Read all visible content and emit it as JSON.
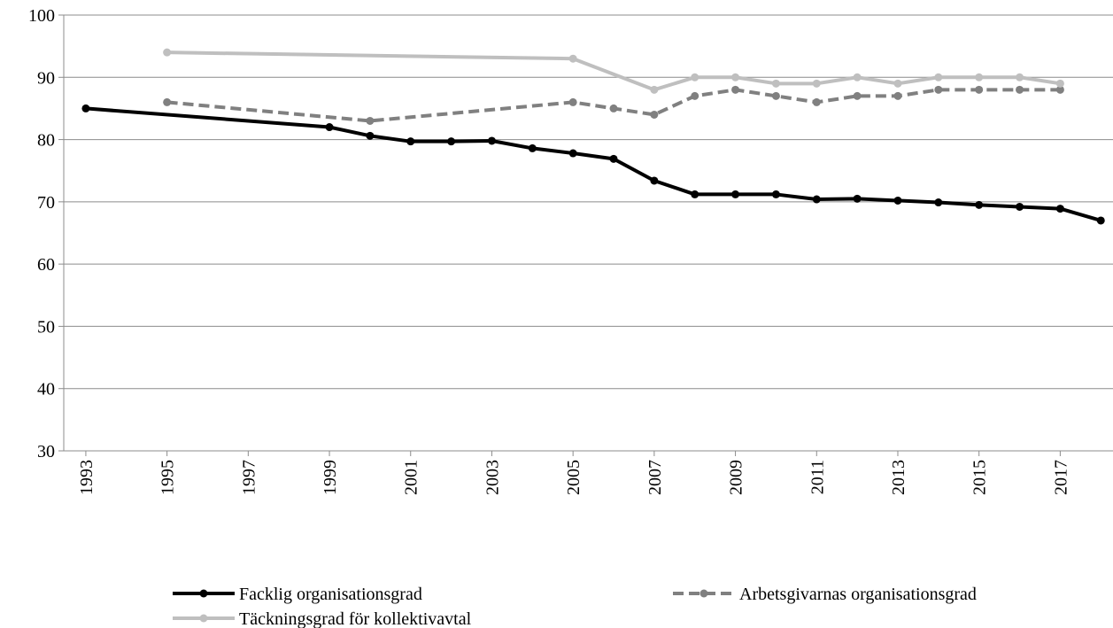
{
  "chart_data": {
    "type": "line",
    "xlim": [
      1992.5,
      2018.3
    ],
    "xticks": [
      1993,
      1995,
      1997,
      1999,
      2001,
      2003,
      2005,
      2007,
      2009,
      2011,
      2013,
      2015,
      2017
    ],
    "ylim": [
      30,
      100
    ],
    "yticks": [
      30,
      40,
      50,
      60,
      70,
      80,
      90,
      100
    ],
    "grid": true,
    "legend": "bottom",
    "series": [
      {
        "name": "Facklig organisationsgrad",
        "color": "#000000",
        "dash": "solid",
        "x": [
          1993,
          1999,
          2000,
          2001,
          2002,
          2003,
          2004,
          2005,
          2006,
          2007,
          2008,
          2009,
          2010,
          2011,
          2012,
          2013,
          2014,
          2015,
          2016,
          2017,
          2018
        ],
        "values": [
          85,
          82,
          80.6,
          79.7,
          79.7,
          79.8,
          78.6,
          77.8,
          76.9,
          73.4,
          71.2,
          71.2,
          71.2,
          70.4,
          70.5,
          70.2,
          69.9,
          69.5,
          69.2,
          68.9,
          67.0
        ]
      },
      {
        "name": "Arbetsgivarnas organisationsgrad",
        "color": "#808080",
        "dash": "dashed",
        "x": [
          1995,
          2000,
          2005,
          2006,
          2007,
          2008,
          2009,
          2010,
          2011,
          2012,
          2013,
          2014,
          2015,
          2016,
          2017
        ],
        "values": [
          86,
          83,
          86,
          85,
          84,
          87,
          88,
          87,
          86,
          87,
          87,
          88,
          88,
          88,
          88
        ]
      },
      {
        "name": "Täckningsgrad för kollektivavtal",
        "color": "#bfbfbf",
        "dash": "solid",
        "x": [
          1995,
          2005,
          2007,
          2008,
          2009,
          2010,
          2011,
          2012,
          2013,
          2014,
          2015,
          2016,
          2017
        ],
        "values": [
          94,
          93,
          88,
          90,
          90,
          89,
          89,
          90,
          89,
          90,
          90,
          90,
          89
        ]
      }
    ]
  }
}
